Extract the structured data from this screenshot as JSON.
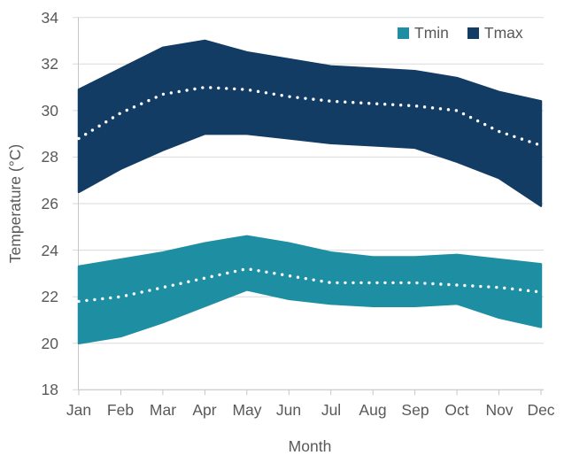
{
  "chart_data": {
    "type": "area",
    "title": "",
    "xlabel": "Month",
    "ylabel": "Temperature (°C)",
    "x_categories": [
      "Jan",
      "Feb",
      "Mar",
      "Apr",
      "May",
      "Jun",
      "Jul",
      "Aug",
      "Sep",
      "Oct",
      "Nov",
      "Dec"
    ],
    "y_ticks": [
      "18",
      "20",
      "22",
      "24",
      "26",
      "28",
      "30",
      "32",
      "34"
    ],
    "ylim": [
      18,
      34
    ],
    "grid": true,
    "legend_position": "top-right",
    "legend": [
      {
        "label": "Tmin",
        "color": "#1E8FA2"
      },
      {
        "label": "Tmax",
        "color": "#133C64"
      }
    ],
    "series": [
      {
        "name": "Tmax",
        "band_color": "#133C64",
        "mean_line_style": "white dotted",
        "upper": [
          30.9,
          31.8,
          32.7,
          33.0,
          32.5,
          32.2,
          31.9,
          31.8,
          31.7,
          31.4,
          30.8,
          30.4
        ],
        "mean": [
          28.8,
          29.9,
          30.7,
          31.0,
          30.9,
          30.6,
          30.4,
          30.3,
          30.2,
          30.0,
          29.1,
          28.5
        ],
        "lower": [
          26.5,
          27.5,
          28.3,
          29.0,
          29.0,
          28.8,
          28.6,
          28.5,
          28.4,
          27.8,
          27.1,
          25.9
        ]
      },
      {
        "name": "Tmin",
        "band_color": "#1E8FA2",
        "mean_line_style": "white dotted",
        "upper": [
          23.3,
          23.6,
          23.9,
          24.3,
          24.6,
          24.3,
          23.9,
          23.7,
          23.7,
          23.8,
          23.6,
          23.4
        ],
        "mean": [
          21.8,
          22.0,
          22.4,
          22.8,
          23.2,
          22.9,
          22.6,
          22.6,
          22.6,
          22.5,
          22.4,
          22.2
        ],
        "lower": [
          20.0,
          20.3,
          20.9,
          21.6,
          22.3,
          21.9,
          21.7,
          21.6,
          21.6,
          21.7,
          21.1,
          20.7
        ]
      }
    ],
    "colors": {
      "grid": "#DADADA",
      "axis": "#C6C6C6",
      "text": "#595959",
      "mean_dots": "#FFFFFF",
      "background": "#FFFFFF"
    }
  }
}
